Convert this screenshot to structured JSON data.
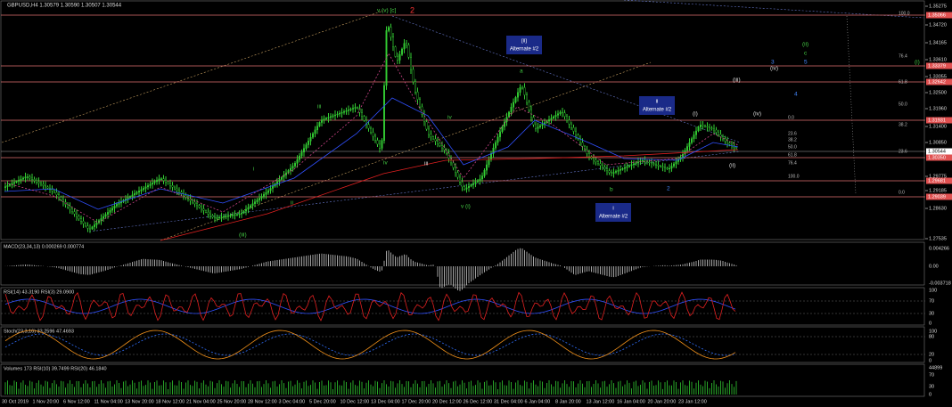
{
  "header": {
    "title": "GBPUSD,H4  1.30579 1.30590 1.30507 1.30544"
  },
  "price_scale": [
    "1.35275",
    "1.34720",
    "1.34165",
    "1.33610",
    "1.33055",
    "1.32500",
    "1.31960",
    "1.31400",
    "1.30850",
    "1.29775",
    "1.29185",
    "1.28630",
    "1.27535"
  ],
  "level_labels": [
    "1.35066",
    "1.33379",
    "1.32642",
    "1.31931",
    "1.30350",
    "1.29681",
    "1.29039"
  ],
  "current_price": "1.30544",
  "panels": [
    {
      "title": "MACD(23,34,13) 0.000269 0.000774",
      "scale": [
        "0.004266",
        "0.00",
        "-0.003718"
      ]
    },
    {
      "title": "RSI(14) 43.3190  RSI(3) 29.0900",
      "scale": [
        "100",
        "70",
        "30",
        "0"
      ]
    },
    {
      "title": "Stoch(23,3,16) 33.2596 47.4693",
      "scale": [
        "100",
        "80",
        "20",
        "0"
      ]
    },
    {
      "title": "Volumes 173  RSI(10) 39.7499  RSI(20) 46.1840",
      "scale": [
        "44899",
        "70",
        "30",
        "0"
      ]
    }
  ],
  "dates": [
    "30 Oct 2019",
    "1 Nov 20:00",
    "6 Nov 12:00",
    "11 Nov 04:00",
    "13 Nov 20:00",
    "18 Nov 12:00",
    "21 Nov 04:00",
    "25 Nov 20:00",
    "28 Nov 12:00",
    "3 Dec 04:00",
    "5 Dec 20:00",
    "10 Dec 12:00",
    "13 Dec 04:00",
    "17 Dec 20:00",
    "20 Dec 12:00",
    "26 Dec 12:00",
    "31 Dec 04:00",
    "6 Jan 04:00",
    "8 Jan 20:00",
    "13 Jan 12:00",
    "16 Jan 04:00",
    "20 Jan 20:00",
    "23 Jan 12:00"
  ],
  "wave_labels": [
    "v (v) [c]",
    "2",
    "a",
    "b",
    "(i)",
    "(iv)",
    "(ii)",
    "2",
    "v (i)",
    "iii",
    "iv",
    "iii",
    "iv",
    "ii",
    "i",
    "(iii)",
    "(ii)",
    "c",
    "5",
    "3",
    "(iv)",
    "(iii)",
    "4",
    "(i)"
  ],
  "boxes": [
    {
      "label": "(ii)",
      "caption": "Alternate #2"
    },
    {
      "label": "ii",
      "caption": "Alternate #2"
    },
    {
      "label": "i",
      "caption": "Alternate #2"
    }
  ],
  "fib_labels": [
    "100.0",
    "76.4",
    "61.8",
    "50.0",
    "38.2",
    "23.6",
    "0.0"
  ],
  "fib_labels_2": [
    "0.0",
    "23.6",
    "38.2",
    "50.0",
    "61.8",
    "76.4",
    "100.0"
  ]
}
